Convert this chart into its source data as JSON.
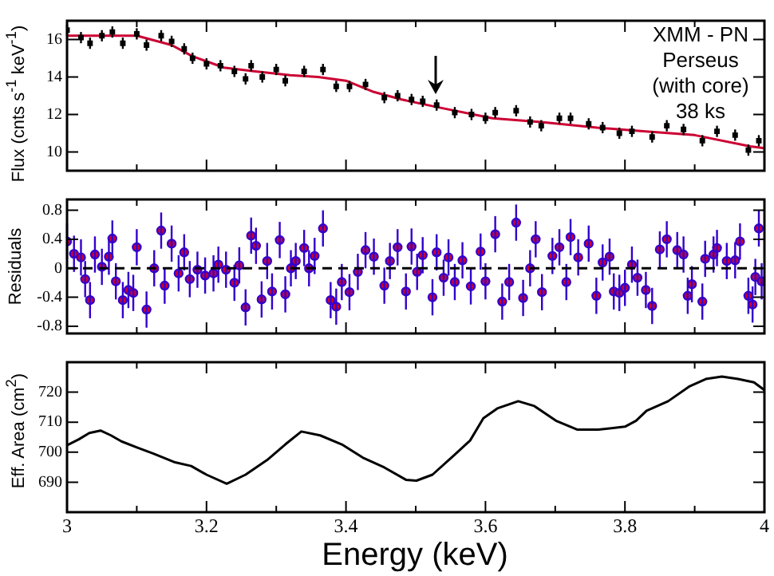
{
  "chart_data": [
    {
      "type": "scatter",
      "ylabel": "Flux (cnts s$^{-1}$ keV$^{-1}$)",
      "xlim": [
        3,
        4
      ],
      "xticks": [
        3,
        {
          "value": 3.1,
          "label": null
        },
        3.2,
        {
          "value": 3.3,
          "label": null
        },
        3.4,
        {
          "value": 3.5,
          "label": null
        },
        3.6,
        {
          "value": 3.7,
          "label": null
        },
        3.8,
        {
          "value": 3.9,
          "label": null
        },
        4
      ],
      "ylim": [
        9,
        17
      ],
      "yticks": [
        10,
        12,
        14,
        16
      ],
      "tick_labels": "y",
      "annotations": [
        "XMM - PN",
        "Perseus",
        "(with core)",
        "38 ks"
      ],
      "series": [
        {
          "color": "#000000",
          "marker": "square",
          "x": [
            3.0,
            3.02,
            3.033,
            3.05,
            3.065,
            3.08,
            3.1,
            3.114,
            3.135,
            3.15,
            3.168,
            3.18,
            3.2,
            3.22,
            3.24,
            3.256,
            3.264,
            3.28,
            3.3,
            3.313,
            3.34,
            3.367,
            3.386,
            3.405,
            3.428,
            3.455,
            3.474,
            3.494,
            3.51,
            3.53,
            3.556,
            3.58,
            3.6,
            3.614,
            3.644,
            3.664,
            3.68,
            3.706,
            3.722,
            3.748,
            3.768,
            3.792,
            3.81,
            3.839,
            3.86,
            3.884,
            3.911,
            3.932,
            3.958,
            3.977,
            3.992
          ],
          "values": [
            16.5,
            16.1,
            15.8,
            16.2,
            16.4,
            15.8,
            16.3,
            15.7,
            16.2,
            15.9,
            15.5,
            15.0,
            14.7,
            14.6,
            14.3,
            13.9,
            14.6,
            14.0,
            14.4,
            13.8,
            14.3,
            14.4,
            13.5,
            13.5,
            13.6,
            12.9,
            13.0,
            12.8,
            12.7,
            12.5,
            12.1,
            12.0,
            11.8,
            12.1,
            12.2,
            11.6,
            11.4,
            11.8,
            11.8,
            11.5,
            11.3,
            11.0,
            11.1,
            10.8,
            11.4,
            11.2,
            10.6,
            11.1,
            10.9,
            10.1,
            10.6
          ],
          "errors": [
            0.3,
            0.3,
            0.3,
            0.3,
            0.3,
            0.3,
            0.3,
            0.3,
            0.3,
            0.3,
            0.3,
            0.3,
            0.3,
            0.3,
            0.3,
            0.3,
            0.3,
            0.3,
            0.3,
            0.3,
            0.3,
            0.3,
            0.3,
            0.3,
            0.3,
            0.3,
            0.3,
            0.3,
            0.3,
            0.3,
            0.3,
            0.3,
            0.3,
            0.3,
            0.3,
            0.3,
            0.3,
            0.3,
            0.3,
            0.3,
            0.3,
            0.3,
            0.3,
            0.3,
            0.3,
            0.3,
            0.3,
            0.3,
            0.3,
            0.3,
            0.3
          ]
        },
        {
          "type": "line",
          "color": "#cc0033",
          "marker": "none",
          "x": [
            3.0,
            3.1,
            3.15,
            3.18,
            3.225,
            3.27,
            3.32,
            3.36,
            3.4,
            3.44,
            3.48,
            3.53,
            3.61,
            3.68,
            3.76,
            3.83,
            3.9,
            3.98,
            4.0
          ],
          "values": [
            16.2,
            16.2,
            15.7,
            15.1,
            14.5,
            14.3,
            14.1,
            14.0,
            13.8,
            13.2,
            12.8,
            12.4,
            11.8,
            11.6,
            11.3,
            11.1,
            10.9,
            10.3,
            10.2
          ]
        }
      ]
    },
    {
      "type": "scatter",
      "ylabel": "Residuals",
      "xlim": [
        3,
        4
      ],
      "xticks": [
        3,
        {
          "value": 3.1,
          "label": null
        },
        3.2,
        {
          "value": 3.3,
          "label": null
        },
        3.4,
        {
          "value": 3.5,
          "label": null
        },
        3.6,
        {
          "value": 3.7,
          "label": null
        },
        3.8,
        {
          "value": 3.9,
          "label": null
        },
        4
      ],
      "ylim": [
        -0.9,
        0.95
      ],
      "yticks": [
        -0.8,
        -0.4,
        0,
        0.4,
        0.8
      ],
      "tick_labels": "y",
      "marker": "circle",
      "ref_lines": [
        {
          "axis": "y",
          "value": 0,
          "color": "#000000",
          "line_style": "dashed"
        }
      ],
      "series": [
        {
          "color": "#3300cc",
          "x": [
            3.0,
            3.01,
            3.02,
            3.026,
            3.033,
            3.04,
            3.05,
            3.06,
            3.065,
            3.07,
            3.08,
            3.088,
            3.095,
            3.1,
            3.114,
            3.125,
            3.135,
            3.14,
            3.15,
            3.16,
            3.168,
            3.176,
            3.187,
            3.198,
            3.21,
            3.217,
            3.228,
            3.24,
            3.247,
            3.256,
            3.264,
            3.271,
            3.279,
            3.287,
            3.294,
            3.305,
            3.313,
            3.321,
            3.328,
            3.34,
            3.347,
            3.355,
            3.367,
            3.378,
            3.386,
            3.394,
            3.405,
            3.417,
            3.428,
            3.44,
            3.455,
            3.463,
            3.474,
            3.486,
            3.494,
            3.502,
            3.51,
            3.524,
            3.53,
            3.54,
            3.547,
            3.556,
            3.567,
            3.579,
            3.593,
            3.6,
            3.614,
            3.624,
            3.634,
            3.644,
            3.654,
            3.664,
            3.672,
            3.681,
            3.696,
            3.706,
            3.716,
            3.722,
            3.733,
            3.748,
            3.759,
            3.768,
            3.778,
            3.784,
            3.792,
            3.8,
            3.81,
            3.818,
            3.83,
            3.839,
            3.85,
            3.86,
            3.875,
            3.884,
            3.89,
            3.896,
            3.911,
            3.915,
            3.927,
            3.932,
            3.946,
            3.958,
            3.965,
            3.977,
            3.983,
            3.987,
            3.992,
            3.996
          ],
          "values": [
            0.37,
            0.2,
            0.15,
            -0.15,
            -0.44,
            0.19,
            0.02,
            0.16,
            0.41,
            -0.18,
            -0.44,
            -0.3,
            -0.34,
            0.29,
            -0.57,
            0,
            0.52,
            -0.24,
            0.34,
            -0.07,
            0.22,
            -0.15,
            -0.02,
            -0.1,
            -0.07,
            0.05,
            -0.02,
            -0.2,
            0.04,
            -0.54,
            0.45,
            0.31,
            -0.43,
            0.1,
            -0.32,
            0.39,
            -0.36,
            0,
            0.1,
            0.28,
            0,
            0.17,
            0.55,
            -0.44,
            -0.53,
            -0.19,
            -0.33,
            -0.05,
            0.25,
            0.16,
            -0.24,
            0.1,
            0.29,
            -0.32,
            0.3,
            -0.05,
            0.18,
            -0.4,
            0.22,
            -0.13,
            0.15,
            -0.19,
            0.11,
            -0.25,
            0.23,
            -0.18,
            0.47,
            -0.46,
            -0.19,
            0.63,
            -0.41,
            0,
            0.4,
            -0.33,
            0.17,
            0.29,
            -0.19,
            0.43,
            0.15,
            0.34,
            -0.38,
            0.08,
            0.16,
            -0.32,
            -0.34,
            -0.27,
            0.05,
            -0.13,
            -0.3,
            -0.52,
            0.26,
            0.4,
            0.25,
            0.19,
            -0.38,
            -0.22,
            -0.46,
            0.13,
            0.19,
            0.28,
            0.1,
            0.11,
            0.37,
            -0.38,
            -0.5,
            -0.12,
            0.55,
            -0.18
          ],
          "errors": [
            0.25,
            0.25,
            0.25,
            0.25,
            0.25,
            0.25,
            0.25,
            0.25,
            0.25,
            0.25,
            0.25,
            0.25,
            0.25,
            0.25,
            0.25,
            0.25,
            0.25,
            0.25,
            0.25,
            0.25,
            0.25,
            0.25,
            0.25,
            0.25,
            0.25,
            0.25,
            0.25,
            0.25,
            0.25,
            0.25,
            0.25,
            0.25,
            0.25,
            0.25,
            0.25,
            0.25,
            0.25,
            0.25,
            0.25,
            0.25,
            0.25,
            0.25,
            0.25,
            0.25,
            0.25,
            0.25,
            0.25,
            0.25,
            0.25,
            0.25,
            0.25,
            0.25,
            0.25,
            0.25,
            0.25,
            0.25,
            0.25,
            0.25,
            0.25,
            0.25,
            0.25,
            0.25,
            0.25,
            0.25,
            0.25,
            0.25,
            0.25,
            0.25,
            0.25,
            0.25,
            0.25,
            0.25,
            0.25,
            0.25,
            0.25,
            0.25,
            0.25,
            0.25,
            0.25,
            0.25,
            0.25,
            0.25,
            0.25,
            0.25,
            0.25,
            0.25,
            0.25,
            0.25,
            0.25,
            0.25,
            0.25,
            0.25,
            0.25,
            0.25,
            0.25,
            0.25,
            0.25,
            0.25,
            0.25,
            0.25,
            0.25,
            0.25,
            0.25,
            0.25,
            0.25,
            0.25,
            0.25,
            0.25
          ]
        }
      ]
    },
    {
      "type": "line",
      "ylabel": "Eff. Area (cm$^{2}$)",
      "xlabel": "Energy (keV)",
      "xlim": [
        3,
        4
      ],
      "xticks": [
        3,
        {
          "value": 3.1,
          "label": null
        },
        3.2,
        {
          "value": 3.3,
          "label": null
        },
        3.4,
        {
          "value": 3.5,
          "label": null
        },
        3.6,
        {
          "value": 3.7,
          "label": null
        },
        3.8,
        {
          "value": 3.9,
          "label": null
        },
        4
      ],
      "ylim": [
        680,
        730
      ],
      "yticks": [
        690,
        700,
        710,
        720
      ],
      "marker": "none",
      "series": [
        {
          "color": "#000000",
          "x": [
            3.0,
            3.017,
            3.032,
            3.048,
            3.063,
            3.078,
            3.101,
            3.124,
            3.155,
            3.178,
            3.2,
            3.229,
            3.256,
            3.287,
            3.313,
            3.336,
            3.363,
            3.394,
            3.424,
            3.455,
            3.486,
            3.501,
            3.524,
            3.555,
            3.578,
            3.597,
            3.617,
            3.647,
            3.67,
            3.701,
            3.732,
            3.762,
            3.8,
            3.816,
            3.831,
            3.862,
            3.893,
            3.916,
            3.939,
            3.962,
            3.985,
            4.0
          ],
          "values": [
            702.3,
            704.3,
            706.4,
            707.2,
            705.6,
            703.6,
            701.5,
            699.5,
            696.6,
            695.4,
            692.5,
            689.5,
            692.5,
            697.4,
            702.6,
            706.9,
            705.6,
            702.6,
            698.2,
            694.9,
            690.8,
            690.5,
            692.5,
            699.0,
            703.9,
            711.3,
            714.6,
            717.0,
            715.4,
            710.5,
            707.5,
            707.5,
            708.5,
            710.5,
            713.8,
            717.0,
            722.0,
            724.4,
            725.2,
            724.4,
            723.3,
            720.7
          ]
        }
      ]
    }
  ]
}
